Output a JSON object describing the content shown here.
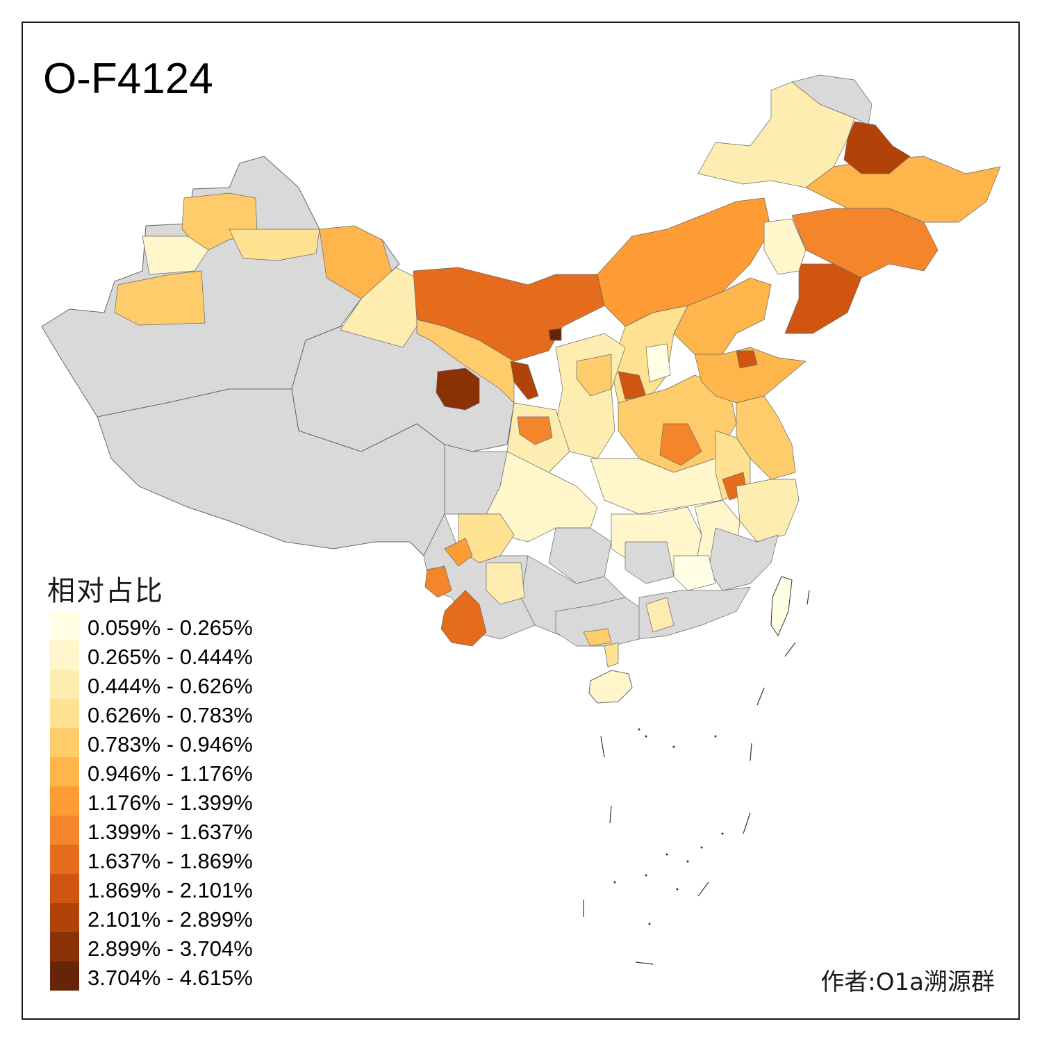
{
  "title": "O-F4124",
  "legend": {
    "title": "相对占比",
    "classes": [
      {
        "label": "0.059% - 0.265%",
        "color": "#FFFFE5"
      },
      {
        "label": "0.265% - 0.444%",
        "color": "#FFF6CC"
      },
      {
        "label": "0.444% - 0.626%",
        "color": "#FEEDB0"
      },
      {
        "label": "0.626% - 0.783%",
        "color": "#FEE191"
      },
      {
        "label": "0.783% - 0.946%",
        "color": "#FECC6A"
      },
      {
        "label": "0.946% - 1.176%",
        "color": "#FEB54B"
      },
      {
        "label": "1.176% - 1.399%",
        "color": "#FD9C34"
      },
      {
        "label": "1.399% - 1.637%",
        "color": "#F5852A"
      },
      {
        "label": "1.637% - 1.869%",
        "color": "#E46C1C"
      },
      {
        "label": "1.869% - 2.101%",
        "color": "#D05510"
      },
      {
        "label": "2.101% - 2.899%",
        "color": "#B14208"
      },
      {
        "label": "2.899% - 3.704%",
        "color": "#8A3206"
      },
      {
        "label": "3.704% - 4.615%",
        "color": "#662506"
      }
    ]
  },
  "credit": "作者:O1a溯源群",
  "colors": {
    "no_data": "#D9D9D9",
    "border": "#666666",
    "frame": "#1a1a1a"
  }
}
